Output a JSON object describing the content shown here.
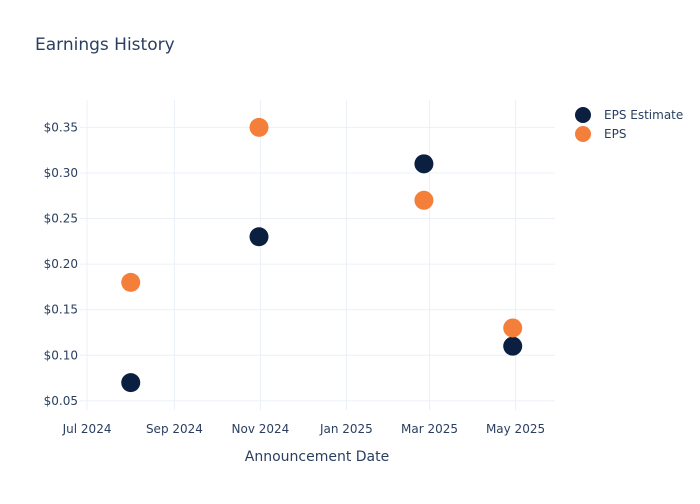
{
  "chart_data": {
    "type": "scatter",
    "title": "Earnings History",
    "xlabel": "Announcement Date",
    "ylabel": "",
    "x_type": "date",
    "x_range": [
      "2024-06-26",
      "2025-05-29"
    ],
    "ylim": [
      0.04,
      0.38
    ],
    "x_ticks": [
      {
        "date": "2024-07-01",
        "label": "Jul 2024"
      },
      {
        "date": "2024-09-01",
        "label": "Sep 2024"
      },
      {
        "date": "2024-11-01",
        "label": "Nov 2024"
      },
      {
        "date": "2025-01-01",
        "label": "Jan 2025"
      },
      {
        "date": "2025-03-01",
        "label": "Mar 2025"
      },
      {
        "date": "2025-05-01",
        "label": "May 2025"
      }
    ],
    "y_ticks": [
      {
        "value": 0.05,
        "label": "$0.05"
      },
      {
        "value": 0.1,
        "label": "$0.10"
      },
      {
        "value": 0.15,
        "label": "$0.15"
      },
      {
        "value": 0.2,
        "label": "$0.20"
      },
      {
        "value": 0.25,
        "label": "$0.25"
      },
      {
        "value": 0.3,
        "label": "$0.30"
      },
      {
        "value": 0.35,
        "label": "$0.35"
      }
    ],
    "grid": true,
    "legend_position": "top-right",
    "series": [
      {
        "name": "EPS Estimate",
        "color": "#0b1f40",
        "points": [
          {
            "x": "2024-08-01",
            "y": 0.07
          },
          {
            "x": "2024-10-31",
            "y": 0.23
          },
          {
            "x": "2025-02-25",
            "y": 0.31
          },
          {
            "x": "2025-04-29",
            "y": 0.11
          }
        ]
      },
      {
        "name": "EPS",
        "color": "#f47f3a",
        "points": [
          {
            "x": "2024-08-01",
            "y": 0.18
          },
          {
            "x": "2024-10-31",
            "y": 0.35
          },
          {
            "x": "2025-02-25",
            "y": 0.27
          },
          {
            "x": "2025-04-29",
            "y": 0.13
          }
        ]
      }
    ]
  }
}
